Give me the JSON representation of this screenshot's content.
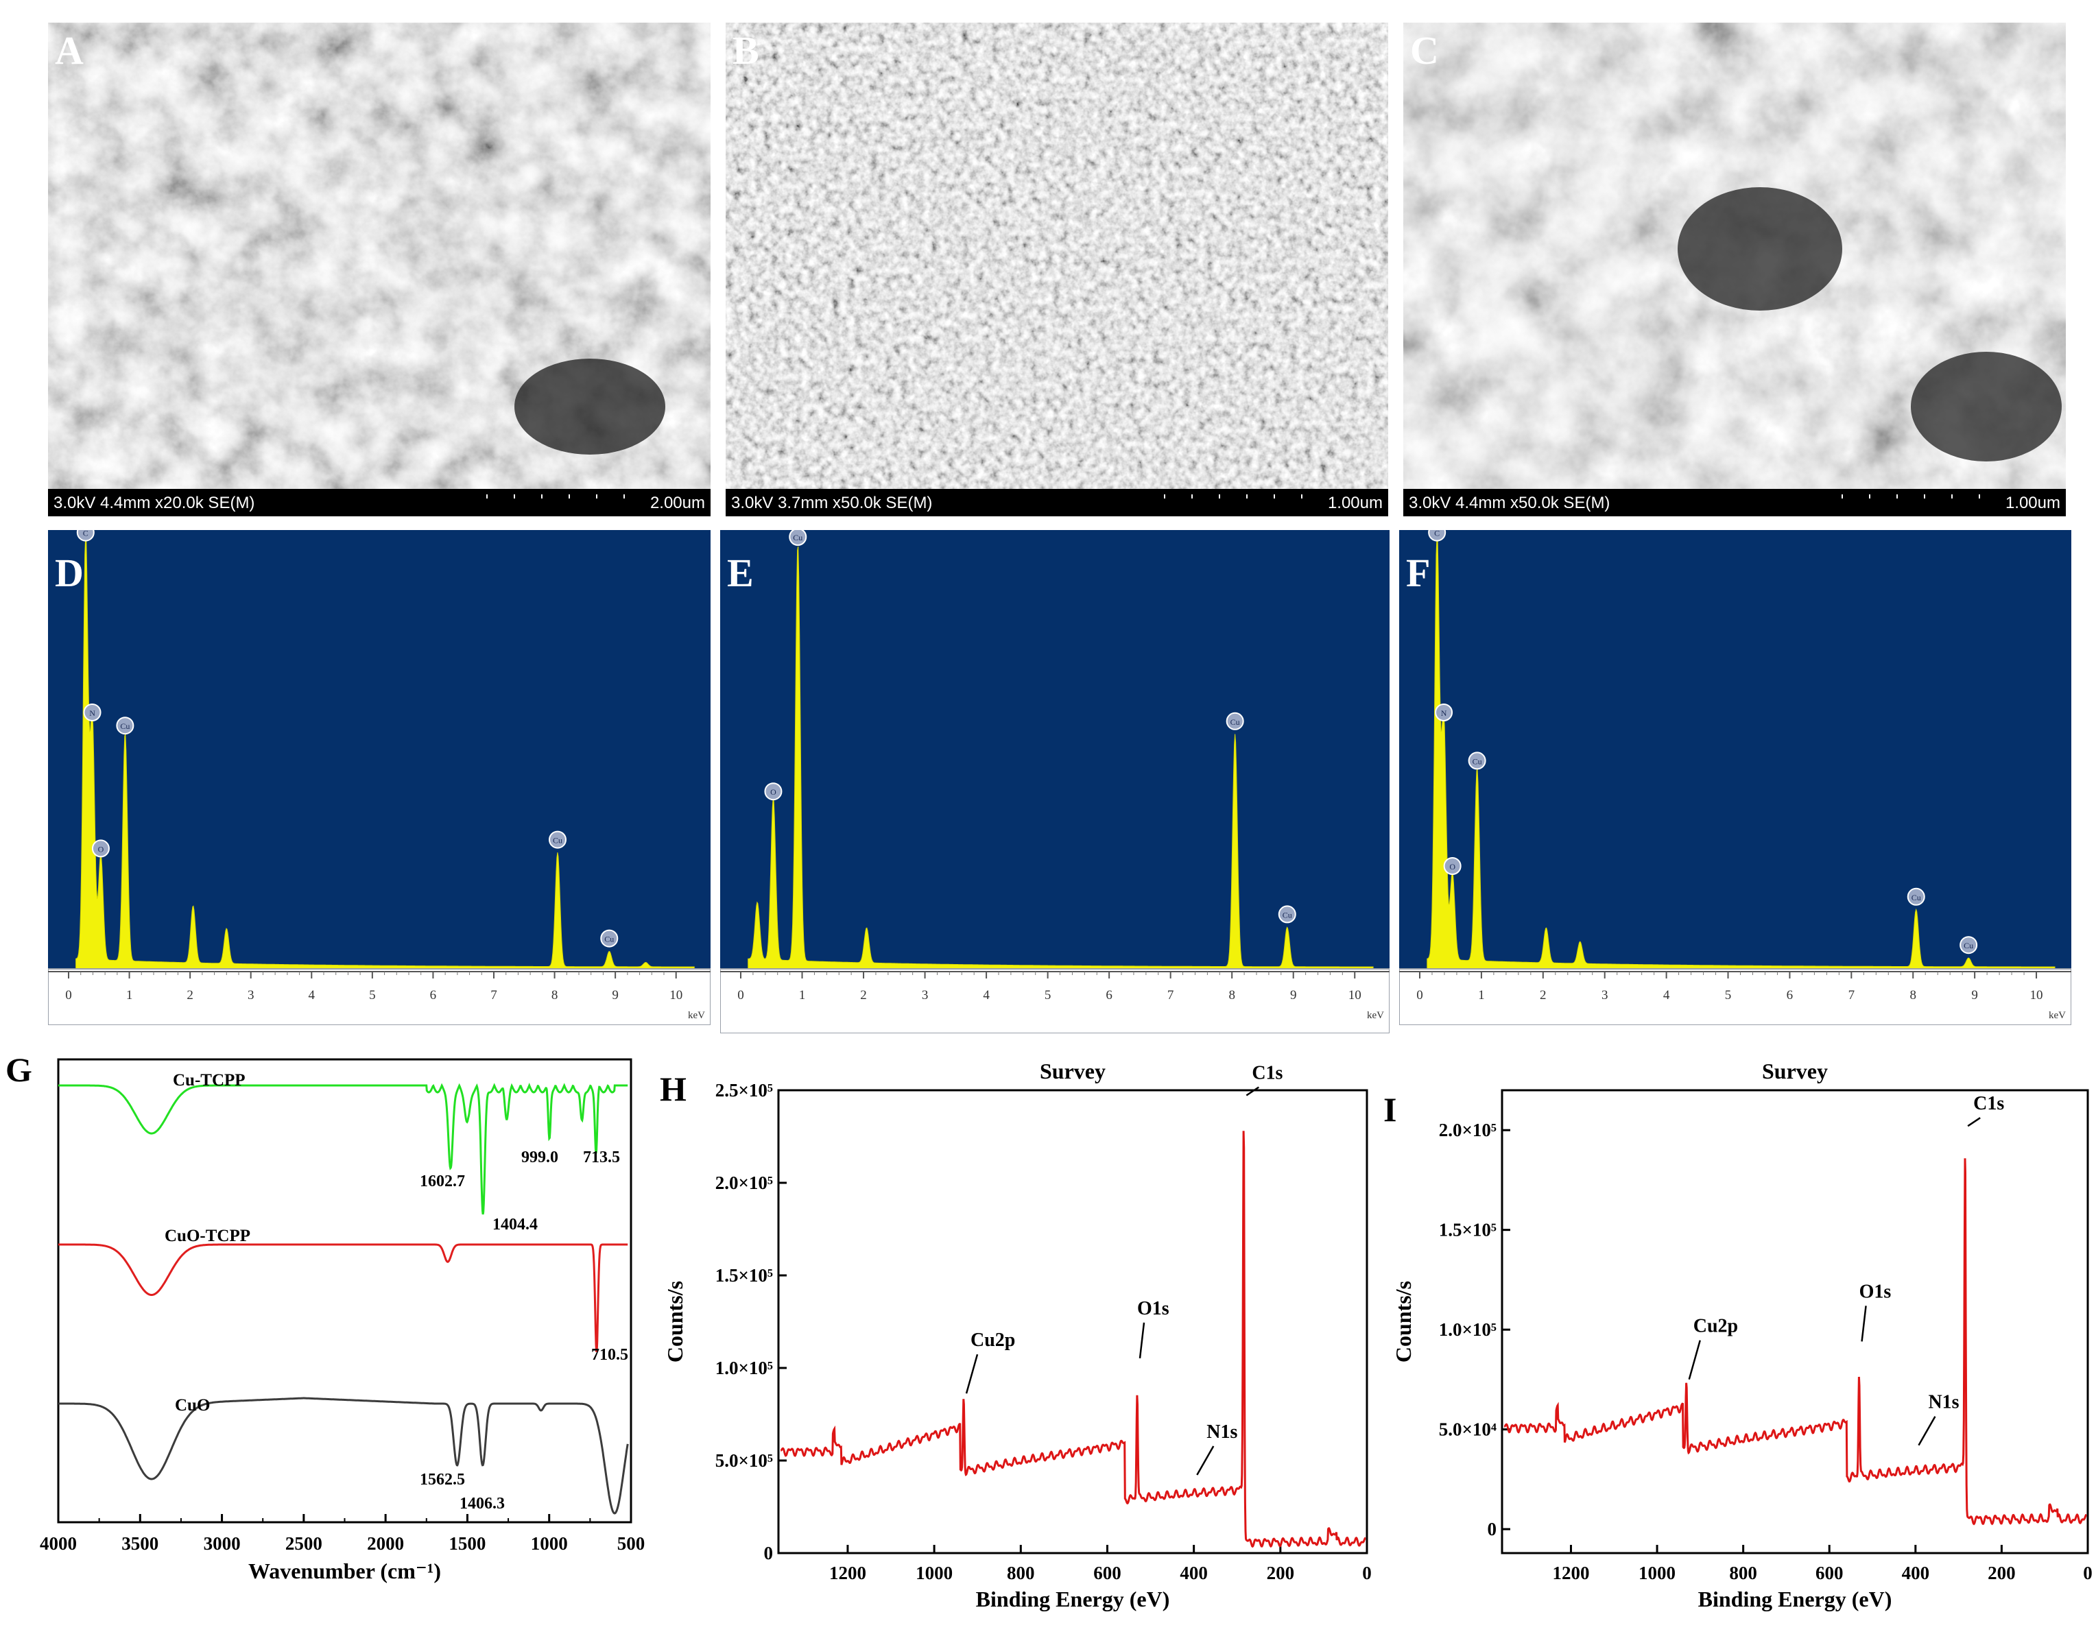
{
  "panels": {
    "A": {
      "letter": "A",
      "info": "3.0kV 4.4mm x20.0k SE(M)",
      "scale": "2.00um"
    },
    "B": {
      "letter": "B",
      "info": "3.0kV 3.7mm x50.0k SE(M)",
      "scale": "1.00um"
    },
    "C": {
      "letter": "C",
      "info": "3.0kV 4.4mm x50.0k SE(M)",
      "scale": "1.00um"
    },
    "D": {
      "letter": "D"
    },
    "E": {
      "letter": "E"
    },
    "F": {
      "letter": "F"
    },
    "G": {
      "letter": "G"
    },
    "H": {
      "letter": "H"
    },
    "I": {
      "letter": "I"
    }
  },
  "colors": {
    "eds_bg": "#05306a",
    "eds_fill": "#f2f20a",
    "green": "#22e022",
    "red": "#e01e1e",
    "dark": "#3c3c3c",
    "xps": "#dd1515"
  },
  "chart_data": [
    {
      "id": "D",
      "type": "area",
      "xlabel": "keV",
      "xlim": [
        0,
        10
      ],
      "xticks": [
        "0",
        "1",
        "2",
        "3",
        "4",
        "5",
        "6",
        "7",
        "8",
        "9",
        "10"
      ],
      "peaks": [
        {
          "x": 0.28,
          "h": 0.97,
          "label": "C"
        },
        {
          "x": 0.39,
          "h": 0.55,
          "label": "N"
        },
        {
          "x": 0.53,
          "h": 0.24,
          "label": "O"
        },
        {
          "x": 0.93,
          "h": 0.52,
          "label": "Cu"
        },
        {
          "x": 2.05,
          "h": 0.13
        },
        {
          "x": 2.6,
          "h": 0.08
        },
        {
          "x": 8.05,
          "h": 0.26,
          "label": "Cu"
        },
        {
          "x": 8.9,
          "h": 0.035,
          "label": "Cu"
        },
        {
          "x": 9.5,
          "h": 0.01
        }
      ]
    },
    {
      "id": "E",
      "type": "area",
      "xlabel": "keV",
      "xlim": [
        0,
        10
      ],
      "xticks": [
        "0",
        "1",
        "2",
        "3",
        "4",
        "5",
        "6",
        "7",
        "8",
        "9",
        "10"
      ],
      "peaks": [
        {
          "x": 0.27,
          "h": 0.13
        },
        {
          "x": 0.53,
          "h": 0.37,
          "label": "O"
        },
        {
          "x": 0.93,
          "h": 0.95,
          "label": "Cu"
        },
        {
          "x": 2.05,
          "h": 0.08
        },
        {
          "x": 8.05,
          "h": 0.53,
          "label": "Cu"
        },
        {
          "x": 8.9,
          "h": 0.09,
          "label": "Cu"
        }
      ]
    },
    {
      "id": "F",
      "type": "area",
      "xlabel": "keV",
      "xlim": [
        0,
        10
      ],
      "xticks": [
        "0",
        "1",
        "2",
        "3",
        "4",
        "5",
        "6",
        "7",
        "8",
        "9",
        "10"
      ],
      "peaks": [
        {
          "x": 0.28,
          "h": 0.97,
          "label": "C"
        },
        {
          "x": 0.39,
          "h": 0.55,
          "label": "N"
        },
        {
          "x": 0.53,
          "h": 0.2,
          "label": "O"
        },
        {
          "x": 0.93,
          "h": 0.44,
          "label": "Cu"
        },
        {
          "x": 2.05,
          "h": 0.08
        },
        {
          "x": 2.6,
          "h": 0.05
        },
        {
          "x": 8.05,
          "h": 0.13,
          "label": "Cu"
        },
        {
          "x": 8.9,
          "h": 0.02,
          "label": "Cu"
        }
      ]
    },
    {
      "id": "G",
      "type": "line",
      "xlabel": "Wavenumber (cm⁻¹)",
      "xlim": [
        4000,
        500
      ],
      "xticks": [
        "4000",
        "3500",
        "3000",
        "2500",
        "2000",
        "1500",
        "1000",
        "500"
      ],
      "series": [
        {
          "name": "Cu-TCPP",
          "baseline": 1.0,
          "bands": [
            {
              "x": 3430,
              "d": 0.35,
              "w": 140
            },
            {
              "x": 1602.7,
              "d": 0.6,
              "w": 18
            },
            {
              "x": 1404.4,
              "d": 0.9,
              "w": 16
            },
            {
              "x": 1500,
              "d": 0.25,
              "w": 20
            },
            {
              "x": 1260,
              "d": 0.2,
              "w": 15
            },
            {
              "x": 999.0,
              "d": 0.35,
              "w": 10
            },
            {
              "x": 800,
              "d": 0.25,
              "w": 12
            },
            {
              "x": 713.5,
              "d": 0.45,
              "w": 10
            }
          ],
          "labels": [
            "1602.7",
            "1404.4",
            "999.0",
            "713.5"
          ]
        },
        {
          "name": "CuO-TCPP",
          "baseline": 1.0,
          "bands": [
            {
              "x": 3430,
              "d": 0.35,
              "w": 150
            },
            {
              "x": 1620,
              "d": 0.12,
              "w": 30
            },
            {
              "x": 710.5,
              "d": 0.75,
              "w": 12
            }
          ],
          "labels": [
            "710.5"
          ]
        },
        {
          "name": "CuO",
          "baseline": 1.0,
          "bands": [
            {
              "x": 3430,
              "d": 0.55,
              "w": 170
            },
            {
              "x": 1562.5,
              "d": 0.45,
              "w": 30
            },
            {
              "x": 1406.3,
              "d": 0.45,
              "w": 25
            },
            {
              "x": 1050,
              "d": 0.05,
              "w": 20
            },
            {
              "x": 600,
              "d": 0.8,
              "w": 80
            }
          ],
          "labels": [
            "1562.5",
            "1406.3"
          ]
        }
      ]
    },
    {
      "id": "H",
      "type": "line",
      "title": "Survey",
      "xlabel": "Binding Energy (eV)",
      "ylabel": "Counts/s",
      "xlim": [
        1360,
        0
      ],
      "xticks": [
        "1200",
        "1000",
        "800",
        "600",
        "400",
        "200",
        "0"
      ],
      "ylim": [
        0,
        250000
      ],
      "yticks": [
        "0",
        "5.0×10⁵",
        "1.0×10⁵",
        "1.5×10⁵",
        "2.0×10⁵",
        "2.5×10⁵"
      ],
      "peaks": [
        {
          "x": 932,
          "y": 84000,
          "label": "Cu2p"
        },
        {
          "x": 531,
          "y": 103000,
          "label": "O1s"
        },
        {
          "x": 399,
          "y": 40000,
          "label": "N1s"
        },
        {
          "x": 284.8,
          "y": 245000,
          "label": "C1s"
        }
      ]
    },
    {
      "id": "I",
      "type": "line",
      "title": "Survey",
      "xlabel": "Binding Energy (eV)",
      "ylabel": "Counts/s",
      "xlim": [
        1360,
        0
      ],
      "xticks": [
        "1200",
        "1000",
        "800",
        "600",
        "400",
        "200",
        "0"
      ],
      "ylim": [
        -12000,
        220000
      ],
      "yticks": [
        "0",
        "5.0×10⁴",
        "1.0×10⁵",
        "1.5×10⁵",
        "2.0×10⁵"
      ],
      "peaks": [
        {
          "x": 932,
          "y": 73000,
          "label": "Cu2p"
        },
        {
          "x": 531,
          "y": 92000,
          "label": "O1s"
        },
        {
          "x": 399,
          "y": 40000,
          "label": "N1s"
        },
        {
          "x": 284.8,
          "y": 200000,
          "label": "C1s"
        }
      ]
    }
  ]
}
